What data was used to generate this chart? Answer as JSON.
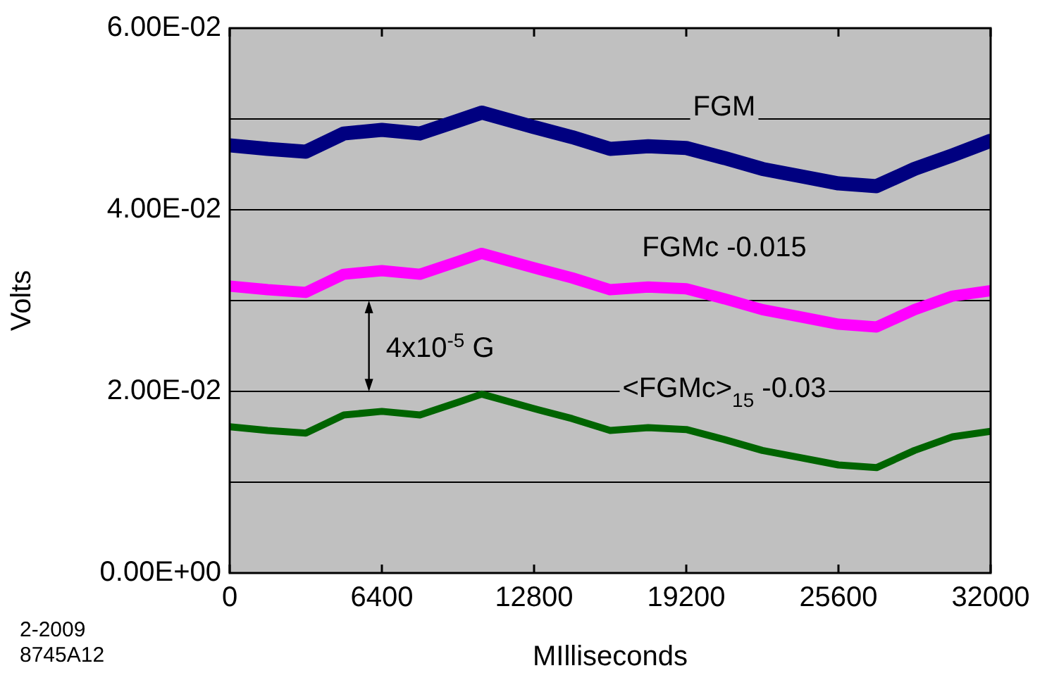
{
  "chart_data": {
    "type": "line",
    "xlabel": "MIlliseconds",
    "ylabel": "Volts",
    "x": [
      0,
      1600,
      3200,
      4800,
      6400,
      8000,
      9600,
      10600,
      12800,
      14400,
      16000,
      17600,
      19200,
      20800,
      22400,
      24000,
      25600,
      27200,
      28800,
      30400,
      32000
    ],
    "series": [
      {
        "name": "FGM",
        "color": "#000080",
        "values": [
          0.0471,
          0.0467,
          0.0464,
          0.0484,
          0.0488,
          0.0484,
          0.0498,
          0.0507,
          0.0491,
          0.048,
          0.0467,
          0.047,
          0.0468,
          0.0457,
          0.0445,
          0.0437,
          0.0429,
          0.0426,
          0.0445,
          0.046,
          0.0476
        ]
      },
      {
        "name": "FGMc -0.015",
        "color": "#ff00ff",
        "values": [
          0.0316,
          0.0312,
          0.0309,
          0.0329,
          0.0333,
          0.0329,
          0.0343,
          0.0352,
          0.0336,
          0.0325,
          0.0312,
          0.0315,
          0.0313,
          0.0302,
          0.029,
          0.0282,
          0.0274,
          0.0271,
          0.029,
          0.0305,
          0.0311
        ]
      },
      {
        "name": "<FGMc>$_{15}$ -0.03",
        "color": "#006400",
        "values": [
          0.0161,
          0.0157,
          0.0154,
          0.0174,
          0.0178,
          0.0174,
          0.0188,
          0.0197,
          0.0181,
          0.017,
          0.0157,
          0.016,
          0.0158,
          0.0147,
          0.0135,
          0.0127,
          0.0119,
          0.0116,
          0.0135,
          0.015,
          0.0156
        ]
      }
    ],
    "xlim": [
      0,
      32000
    ],
    "xticks": [
      0,
      6400,
      12800,
      19200,
      25600,
      32000
    ],
    "ylim": [
      0,
      0.06
    ],
    "yticks": [
      {
        "value": 0,
        "label": "0.00E+00"
      },
      {
        "value": 0.01,
        "label": null
      },
      {
        "value": 0.02,
        "label": "2.00E-02"
      },
      {
        "value": 0.03,
        "label": null
      },
      {
        "value": 0.04,
        "label": "4.00E-02"
      },
      {
        "value": 0.05,
        "label": null
      },
      {
        "value": 0.06,
        "label": "6.00E-02"
      }
    ],
    "grid": "y",
    "legend": false,
    "marker": "none",
    "line_style": "solid",
    "annotations": [
      "4x10$^{-5}$ G",
      "2-2009",
      "8745A12"
    ]
  }
}
